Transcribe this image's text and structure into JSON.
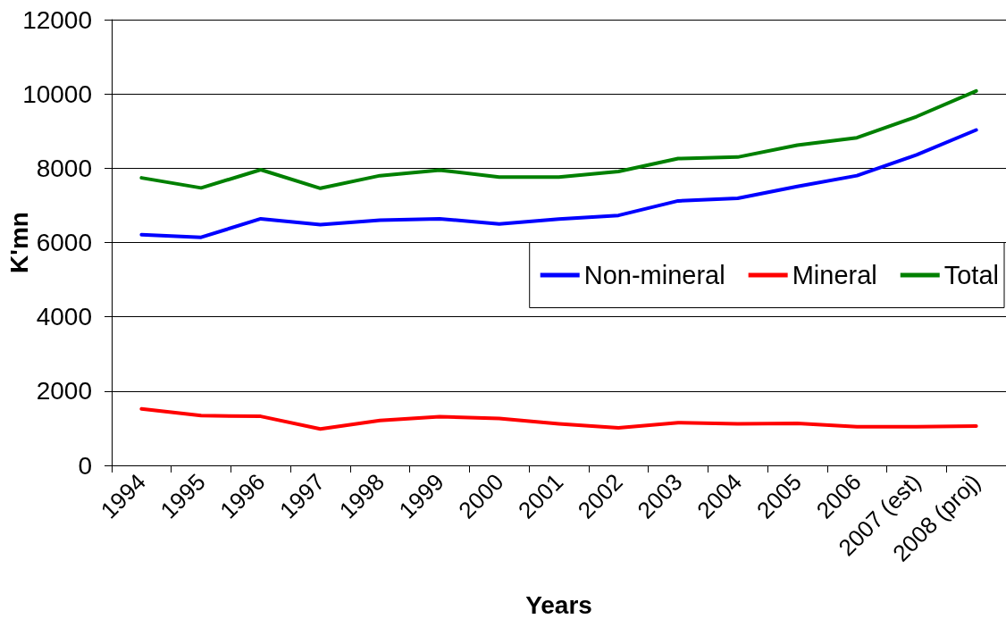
{
  "chart_data": {
    "type": "line",
    "xlabel": "Years",
    "ylabel": "K'mn",
    "categories": [
      "1994",
      "1995",
      "1996",
      "1997",
      "1998",
      "1999",
      "2000",
      "2001",
      "2002",
      "2003",
      "2004",
      "2005",
      "2006",
      "2007 (est)",
      "2008 (proj)"
    ],
    "series": [
      {
        "name": "Non-mineral",
        "color": "#0000ff",
        "values": [
          6210,
          6140,
          6640,
          6480,
          6600,
          6640,
          6500,
          6630,
          6730,
          7120,
          7190,
          7510,
          7800,
          8360,
          9030
        ]
      },
      {
        "name": "Mineral",
        "color": "#ff0000",
        "values": [
          1520,
          1340,
          1320,
          980,
          1210,
          1310,
          1260,
          1120,
          1010,
          1150,
          1120,
          1130,
          1040,
          1040,
          1060
        ]
      },
      {
        "name": "Total",
        "color": "#008000",
        "values": [
          7740,
          7470,
          7960,
          7460,
          7800,
          7950,
          7760,
          7760,
          7910,
          8260,
          8300,
          8620,
          8820,
          9390,
          10080
        ]
      }
    ],
    "ylim": [
      0,
      12000
    ],
    "yticks": [
      0,
      2000,
      4000,
      6000,
      8000,
      10000,
      12000
    ],
    "grid": "y",
    "legend": "right",
    "marker": "none",
    "line_style": "solid"
  }
}
